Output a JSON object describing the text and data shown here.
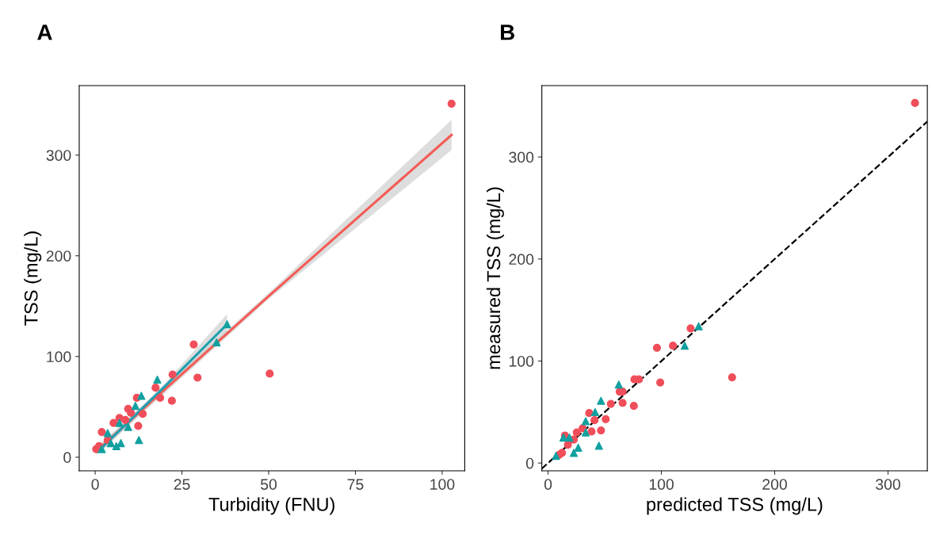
{
  "chart_data": [
    {
      "type": "scatter",
      "title": "A",
      "xlabel": "Turbidity (FNU)",
      "ylabel": "TSS (mg/L)",
      "xlim": [
        -4.6,
        106.5
      ],
      "ylim": [
        -13.5,
        369
      ],
      "xticks": [
        0,
        25,
        50,
        75,
        100
      ],
      "yticks": [
        0,
        100,
        200,
        300
      ],
      "grid": false,
      "legend": false,
      "series": [
        {
          "marker": "circle",
          "color": "#f04e5a",
          "x": [
            102.7,
            50.3,
            28.4,
            29.5,
            22.3,
            22.1,
            18.7,
            17.4,
            12,
            13.7,
            12.4,
            9.5,
            7,
            5.3,
            1.9,
            1.1,
            0.3,
            3.6,
            8.7,
            10.3
          ],
          "values": [
            351,
            83,
            112,
            79,
            82,
            56,
            59,
            69,
            59,
            43,
            31,
            48,
            39,
            34,
            25,
            11,
            8,
            17,
            37,
            44
          ]
        },
        {
          "marker": "triangle",
          "color": "#12a0a0",
          "x": [
            17.9,
            13.3,
            11.6,
            12.6,
            7.4,
            6.1,
            9.5,
            3.6,
            1.9,
            4.5,
            7,
            35,
            38
          ],
          "values": [
            77,
            61,
            51,
            17,
            14,
            11,
            30,
            24,
            8,
            14,
            34,
            114,
            132
          ]
        },
        {
          "type": "line",
          "marker": "none",
          "line_style": "solid",
          "color": "#f45b55",
          "x": [
            0.3,
            50,
            102.7
          ],
          "values": [
            6,
            160,
            320
          ],
          "lower": [
            2,
            157,
            305
          ],
          "upper": [
            10,
            163,
            335
          ]
        },
        {
          "type": "line",
          "marker": "none",
          "line_style": "solid",
          "color": "#1fa0b0",
          "x": [
            1.5,
            20,
            38
          ],
          "values": [
            8,
            70,
            132
          ],
          "lower": [
            5,
            67,
            122
          ],
          "upper": [
            11,
            73,
            142
          ]
        }
      ]
    },
    {
      "type": "scatter",
      "title": "B",
      "xlabel": "predicted TSS (mg/L)",
      "ylabel": "measured TSS (mg/L)",
      "xlim": [
        -5.5,
        334.7
      ],
      "ylim": [
        -7.6,
        370
      ],
      "xticks": [
        0,
        100,
        200,
        300
      ],
      "yticks": [
        0,
        100,
        200,
        300
      ],
      "grid": false,
      "legend": false,
      "series": [
        {
          "marker": "circle",
          "color": "#f04e5a",
          "x": [
            323.8,
            162.4,
            125.8,
            96.1,
            110.2,
            99,
            76.2,
            80.2,
            75.7,
            65.8,
            63.2,
            65.8,
            55.4,
            50.9,
            46.7,
            36.3,
            38.4,
            41,
            30.5,
            25.3,
            17.5,
            12.3,
            9.7,
            14.9,
            22.7
          ],
          "values": [
            353,
            84,
            132,
            113,
            115,
            79,
            82,
            82,
            56,
            59,
            70,
            70,
            58,
            43,
            32,
            49,
            31,
            42,
            34,
            30,
            18,
            10,
            8,
            27,
            23
          ]
        },
        {
          "marker": "triangle",
          "color": "#12a0a0",
          "x": [
            132.9,
            120.6,
            62.4,
            46.7,
            41.5,
            44.9,
            33.2,
            33.2,
            13.6,
            18.8,
            26.6,
            22.7,
            7
          ],
          "values": [
            134,
            115,
            77,
            61,
            50,
            17,
            41,
            30,
            25,
            25,
            15,
            10,
            7
          ]
        },
        {
          "type": "line",
          "marker": "none",
          "line_style": "dashed",
          "color": "#000000",
          "x": [
            -5.5,
            334.7
          ],
          "values": [
            -5.5,
            334.7
          ]
        }
      ]
    }
  ]
}
